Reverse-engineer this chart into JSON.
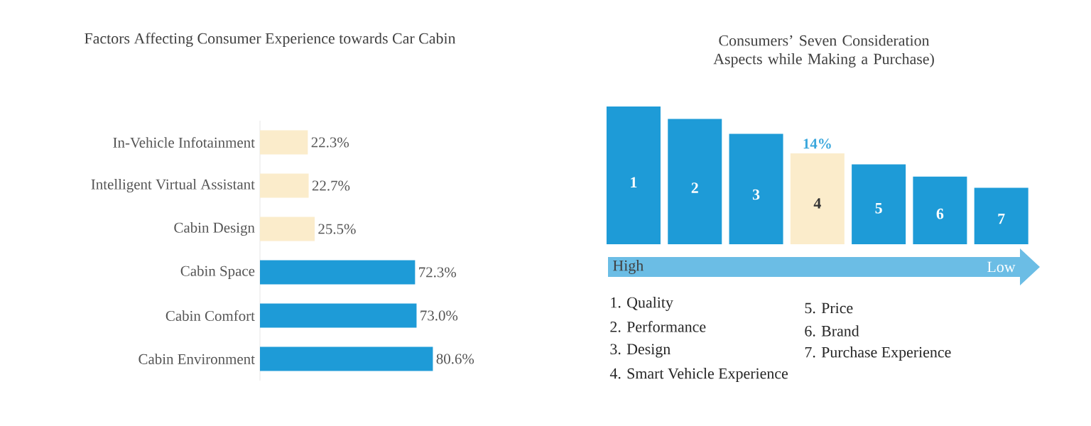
{
  "chart_data": [
    {
      "type": "bar",
      "orientation": "horizontal",
      "title": "Factors Affecting Consumer Experience towards Car Cabin",
      "categories": [
        "In-Vehicle Infotainment",
        "Intelligent Virtual Assistant",
        "Cabin Design",
        "Cabin Space",
        "Cabin Comfort",
        "Cabin Environment"
      ],
      "values": [
        22.3,
        22.7,
        25.5,
        72.3,
        73.0,
        80.6
      ],
      "colors": [
        "#fbeccb",
        "#fbeccb",
        "#fbeccb",
        "#1e9bd7",
        "#1e9bd7",
        "#1e9bd7"
      ],
      "value_labels": [
        "22.3%",
        "22.7%",
        "25.5%",
        "72.3%",
        "73.0%",
        "80.6%"
      ]
    },
    {
      "type": "bar",
      "title": "Consumers’ Seven Consideration Aspects while Making a Purchase)",
      "categories": [
        "1",
        "2",
        "3",
        "4",
        "5",
        "6",
        "7"
      ],
      "values": [
        21.2,
        19.3,
        17.0,
        14,
        12.3,
        10.4,
        8.7
      ],
      "colors": [
        "#1e9bd7",
        "#1e9bd7",
        "#1e9bd7",
        "#fbeccb",
        "#1e9bd7",
        "#1e9bd7",
        "#1e9bd7"
      ],
      "value_labels": [
        null,
        null,
        null,
        "14%",
        null,
        null,
        null
      ],
      "annotations": [
        "High",
        "Low",
        "1. Quality",
        "2. Performance",
        "3. Design",
        "4. Smart Vehicle Experience",
        "5. Price",
        "6. Brand",
        "7. Purchase Experience"
      ]
    }
  ]
}
